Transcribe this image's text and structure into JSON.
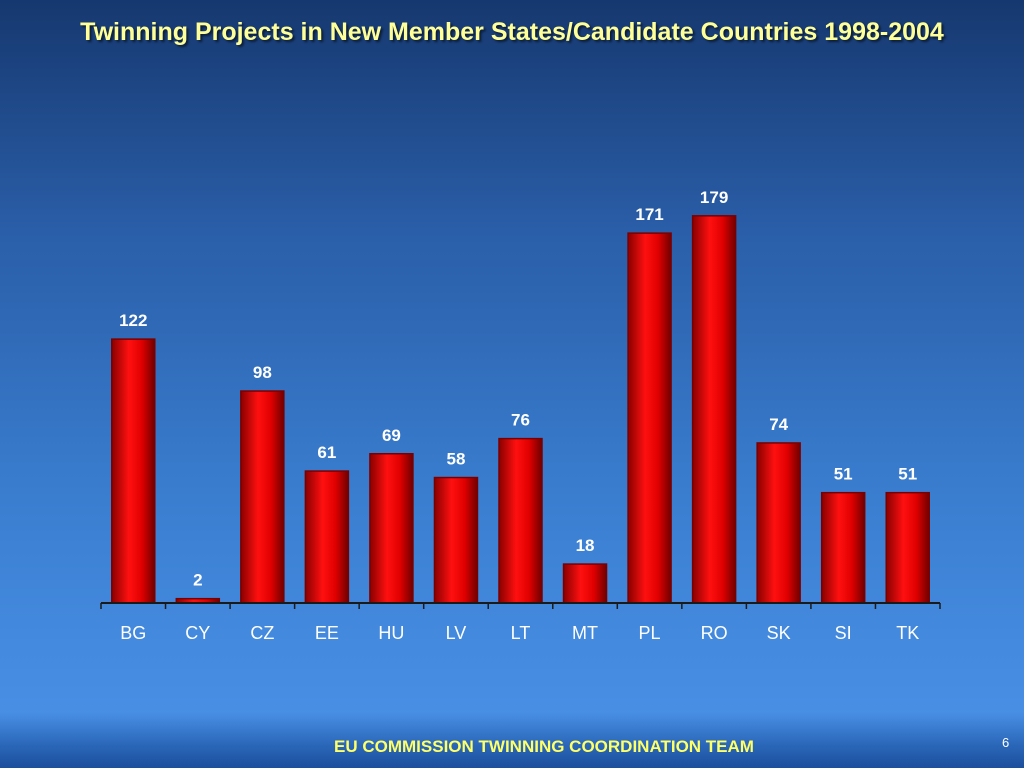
{
  "slide": {
    "title": "Twinning Projects in New Member States/Candidate Countries 1998-2004",
    "footer": "EU COMMISSION TWINNING COORDINATION TEAM",
    "slide_number": "6"
  },
  "colors": {
    "title_text": "#ffff99",
    "footer_text": "#ffff66",
    "bar_fill": "#ee0000",
    "bar_edge": "#7a0000",
    "axis": "#1a1a1a",
    "label_text": "#ffffff"
  },
  "chart_data": {
    "type": "bar",
    "title": "",
    "xlabel": "",
    "ylabel": "",
    "categories": [
      "BG",
      "CY",
      "CZ",
      "EE",
      "HU",
      "LV",
      "LT",
      "MT",
      "PL",
      "RO",
      "SK",
      "SI",
      "TK"
    ],
    "values": [
      122,
      2,
      98,
      61,
      69,
      58,
      76,
      18,
      171,
      179,
      74,
      51,
      51
    ],
    "data_labels": [
      "122",
      "2",
      "98",
      "61",
      "69",
      "58",
      "76",
      "18",
      "171",
      "179",
      "74",
      "51",
      "51"
    ],
    "ylim": [
      0,
      200
    ],
    "grid": false,
    "legend": "none"
  }
}
